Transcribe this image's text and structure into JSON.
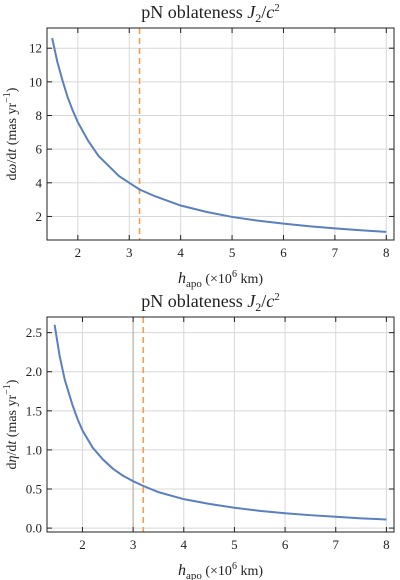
{
  "chart_data": [
    {
      "type": "line",
      "title_text": "pN oblateness ",
      "title_math": "J",
      "title_sub": "2",
      "title_slash": "/",
      "title_c": "c",
      "title_sup": "2",
      "ylabel_prefix": "d",
      "ylabel_symbol": "ω",
      "ylabel_suffix": "/d",
      "ylabel_t": "t",
      "ylabel_units": "(mas  yr",
      "ylabel_units_sup": "−1",
      "ylabel_units_close": ")",
      "xlabel_h": "h",
      "xlabel_sub": "apo",
      "xlabel_units": "(×10",
      "xlabel_units_sup": "6",
      "xlabel_units_close": " km)",
      "xlim": [
        1.4,
        8.15
      ],
      "ylim": [
        0.6,
        13.2
      ],
      "xticks": [
        2,
        3,
        4,
        5,
        6,
        7,
        8
      ],
      "yticks": [
        2,
        4,
        6,
        8,
        10,
        12
      ],
      "xtick_labels": [
        "2",
        "3",
        "4",
        "5",
        "6",
        "7",
        "8"
      ],
      "ytick_labels": [
        "2",
        "4",
        "6",
        "8",
        "10",
        "12"
      ],
      "dashed_vline_x": 3.2,
      "grid": true,
      "series": [
        {
          "x": [
            1.5,
            1.6,
            1.7,
            1.8,
            1.9,
            2.0,
            2.2,
            2.4,
            2.6,
            2.8,
            3.0,
            3.2,
            3.5,
            4.0,
            4.5,
            5.0,
            5.5,
            6.0,
            6.5,
            7.0,
            7.5,
            8.0
          ],
          "y": [
            12.6,
            11.2,
            10.1,
            9.1,
            8.3,
            7.6,
            6.5,
            5.6,
            5.0,
            4.4,
            4.0,
            3.6,
            3.2,
            2.65,
            2.27,
            1.97,
            1.75,
            1.57,
            1.42,
            1.29,
            1.18,
            1.08
          ]
        }
      ]
    },
    {
      "type": "line",
      "title_text": "pN oblateness ",
      "title_math": "J",
      "title_sub": "2",
      "title_slash": "/",
      "title_c": "c",
      "title_sup": "2",
      "ylabel_prefix": "d",
      "ylabel_symbol": "η",
      "ylabel_suffix": "/d",
      "ylabel_t": "t",
      "ylabel_units": "(mas  yr",
      "ylabel_units_sup": "−1",
      "ylabel_units_close": ")",
      "xlabel_h": "h",
      "xlabel_sub": "apo",
      "xlabel_units": "(×10",
      "xlabel_units_sup": "6",
      "xlabel_units_close": " km)",
      "xlim": [
        1.3,
        8.15
      ],
      "ylim": [
        -0.05,
        2.7
      ],
      "xticks": [
        2,
        3,
        4,
        5,
        6,
        7,
        8
      ],
      "yticks": [
        0.0,
        0.5,
        1.0,
        1.5,
        2.0,
        2.5
      ],
      "xtick_labels": [
        "2",
        "3",
        "4",
        "5",
        "6",
        "7",
        "8"
      ],
      "ytick_labels": [
        "0.0",
        "0.5",
        "1.0",
        "1.5",
        "2.0",
        "2.5"
      ],
      "dashed_vline_x": 3.2,
      "solid_vline_x": 3.0,
      "grid": true,
      "series": [
        {
          "x": [
            1.45,
            1.55,
            1.65,
            1.8,
            1.9,
            2.0,
            2.2,
            2.4,
            2.6,
            2.8,
            3.0,
            3.2,
            3.5,
            4.0,
            4.5,
            5.0,
            5.5,
            6.0,
            6.5,
            7.0,
            7.5,
            8.0
          ],
          "y": [
            2.6,
            2.2,
            1.9,
            1.58,
            1.4,
            1.25,
            1.03,
            0.88,
            0.76,
            0.67,
            0.6,
            0.54,
            0.46,
            0.37,
            0.31,
            0.26,
            0.22,
            0.19,
            0.165,
            0.145,
            0.125,
            0.11
          ]
        }
      ]
    }
  ]
}
